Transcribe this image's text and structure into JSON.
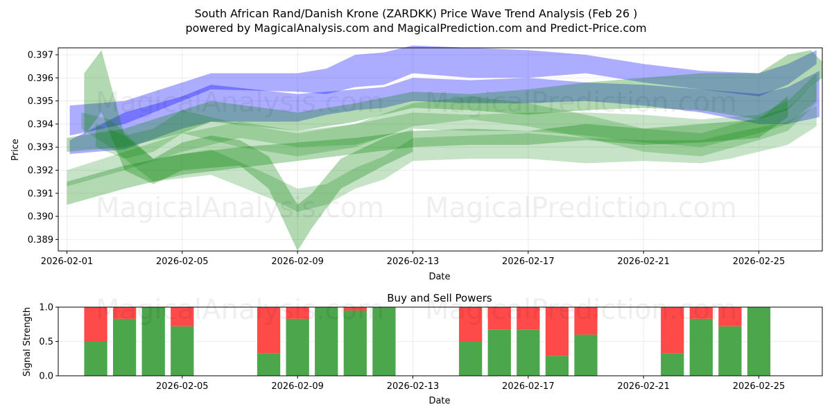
{
  "chart_data": [
    {
      "type": "area",
      "title": "South African Rand/Danish Krone (ZARDKK) Price Wave Trend Analysis (Feb 26 )",
      "subtitle": "powered by MagicalAnalysis.com and MagicalPrediction.com and Predict-Price.com",
      "xlabel": "Date",
      "ylabel": "Price",
      "xlim": [
        -0.3,
        26.2
      ],
      "ylim": [
        0.3885,
        0.3973
      ],
      "x_ticks": [
        0,
        4,
        8,
        12,
        16,
        20,
        24
      ],
      "x_tick_labels": [
        "2026-02-01",
        "2026-02-05",
        "2026-02-09",
        "2026-02-13",
        "2026-02-17",
        "2026-02-21",
        "2026-02-25"
      ],
      "y_ticks": [
        0.389,
        0.39,
        0.391,
        0.392,
        0.393,
        0.394,
        0.395,
        0.396,
        0.397
      ],
      "y_tick_labels": [
        "0.389",
        "0.390",
        "0.391",
        "0.392",
        "0.393",
        "0.394",
        "0.395",
        "0.396",
        "0.397"
      ],
      "grid": true,
      "series": [
        {
          "name": "blue wave upper band",
          "color": "#0000ff",
          "x": [
            0.1,
            2,
            4,
            5,
            8,
            9,
            10,
            11,
            12,
            14,
            16,
            17,
            18,
            20,
            22,
            24,
            25,
            26
          ],
          "lower": [
            0.3935,
            0.394,
            0.395,
            0.3955,
            0.3954,
            0.3953,
            0.3956,
            0.3957,
            0.3962,
            0.396,
            0.396,
            0.3961,
            0.3962,
            0.3958,
            0.3955,
            0.3952,
            0.3957,
            0.3966
          ],
          "upper": [
            0.3948,
            0.395,
            0.3958,
            0.3962,
            0.3962,
            0.3964,
            0.397,
            0.3971,
            0.3974,
            0.3973,
            0.3972,
            0.3971,
            0.397,
            0.3966,
            0.3963,
            0.3962,
            0.3966,
            0.3972
          ]
        },
        {
          "name": "blue wave lower band",
          "color": "#0000ff",
          "x": [
            0.1,
            2,
            4,
            5,
            8,
            9,
            10,
            11,
            12,
            14,
            16,
            18,
            20,
            22,
            24,
            25,
            26.1
          ],
          "lower": [
            0.3927,
            0.3929,
            0.3938,
            0.3941,
            0.3941,
            0.3944,
            0.3946,
            0.3947,
            0.395,
            0.3949,
            0.3949,
            0.395,
            0.3948,
            0.3945,
            0.394,
            0.394,
            0.3943
          ],
          "upper": [
            0.3933,
            0.3945,
            0.3952,
            0.3957,
            0.3953,
            0.3954,
            0.3955,
            0.3956,
            0.396,
            0.3959,
            0.396,
            0.3958,
            0.3957,
            0.3955,
            0.3953,
            0.3956,
            0.3963
          ]
        },
        {
          "name": "green wave upper trend",
          "color": "#008000",
          "x": [
            0,
            2,
            4,
            5,
            8,
            10,
            12,
            14,
            16,
            18,
            20,
            22,
            24,
            25,
            25.8,
            26.2
          ],
          "lower": [
            0.3928,
            0.393,
            0.3936,
            0.3941,
            0.3937,
            0.3941,
            0.3947,
            0.3946,
            0.3944,
            0.3946,
            0.3947,
            0.3946,
            0.3942,
            0.3946,
            0.3956,
            0.396
          ],
          "upper": [
            0.3934,
            0.3938,
            0.3946,
            0.395,
            0.3945,
            0.3949,
            0.3954,
            0.3953,
            0.3955,
            0.3958,
            0.396,
            0.3962,
            0.3962,
            0.397,
            0.3972,
            0.3967
          ]
        },
        {
          "name": "green wave middle trend",
          "color": "#008000",
          "x": [
            0,
            2,
            4,
            6,
            8,
            10,
            12,
            14,
            16,
            18,
            20,
            22,
            24,
            25,
            26
          ],
          "lower": [
            0.3913,
            0.392,
            0.3928,
            0.3934,
            0.393,
            0.3931,
            0.3938,
            0.3937,
            0.3937,
            0.3935,
            0.3932,
            0.393,
            0.3936,
            0.394,
            0.395
          ],
          "upper": [
            0.392,
            0.3928,
            0.3936,
            0.3941,
            0.3937,
            0.394,
            0.3945,
            0.3944,
            0.3945,
            0.3945,
            0.3944,
            0.3942,
            0.3944,
            0.395,
            0.3962
          ]
        },
        {
          "name": "green wave lower trend",
          "color": "#008000",
          "x": [
            0,
            2,
            4,
            6,
            8,
            10,
            12,
            14,
            16,
            18,
            20,
            22,
            24,
            25
          ],
          "lower": [
            0.3905,
            0.3912,
            0.3918,
            0.3921,
            0.3924,
            0.3927,
            0.393,
            0.3931,
            0.3931,
            0.3933,
            0.3931,
            0.3932,
            0.3934,
            0.3943
          ],
          "upper": [
            0.3915,
            0.3922,
            0.3927,
            0.393,
            0.3932,
            0.3934,
            0.3937,
            0.3938,
            0.3937,
            0.394,
            0.3938,
            0.394,
            0.3942,
            0.3952
          ]
        },
        {
          "name": "green wave dip band",
          "color": "#008000",
          "x": [
            0.5,
            1.5,
            3,
            5,
            7,
            8,
            9,
            10,
            11,
            12,
            14,
            16,
            18,
            20,
            22,
            23,
            25,
            26
          ],
          "lower": [
            0.3938,
            0.393,
            0.3915,
            0.3918,
            0.3908,
            0.3902,
            0.3905,
            0.3912,
            0.3916,
            0.3924,
            0.3925,
            0.3925,
            0.3923,
            0.3924,
            0.3923,
            0.3925,
            0.3931,
            0.3939
          ],
          "upper": [
            0.3945,
            0.3942,
            0.3925,
            0.3929,
            0.3918,
            0.3912,
            0.3914,
            0.3921,
            0.3926,
            0.3934,
            0.3935,
            0.3936,
            0.3934,
            0.3933,
            0.3933,
            0.3936,
            0.3941,
            0.3948
          ]
        },
        {
          "name": "green wave early spike",
          "color": "#008000",
          "x": [
            0.6,
            1.2,
            2,
            3,
            4,
            5,
            6,
            7,
            8,
            8.5,
            9.5,
            11,
            12
          ],
          "lower": [
            0.3935,
            0.3945,
            0.392,
            0.3914,
            0.392,
            0.3921,
            0.3922,
            0.3912,
            0.3885,
            0.3895,
            0.3912,
            0.3922,
            0.3928
          ],
          "upper": [
            0.3962,
            0.3972,
            0.3935,
            0.3925,
            0.3932,
            0.3935,
            0.3933,
            0.3926,
            0.3905,
            0.391,
            0.3925,
            0.3934,
            0.3938
          ]
        },
        {
          "name": "green wave upper mid band",
          "color": "#008000",
          "x": [
            1,
            2,
            3,
            4,
            6,
            8,
            10,
            12,
            14,
            16,
            18,
            20,
            22,
            24,
            25,
            26
          ],
          "lower": [
            0.393,
            0.3925,
            0.3928,
            0.3936,
            0.393,
            0.3926,
            0.393,
            0.3939,
            0.3942,
            0.3939,
            0.3934,
            0.3928,
            0.3926,
            0.3933,
            0.3937,
            0.3949
          ],
          "upper": [
            0.394,
            0.3935,
            0.3938,
            0.3946,
            0.394,
            0.3936,
            0.394,
            0.3949,
            0.3952,
            0.3949,
            0.3944,
            0.3938,
            0.3936,
            0.3943,
            0.3947,
            0.3958
          ]
        }
      ]
    },
    {
      "type": "bar",
      "title": "Buy and Sell Powers",
      "xlabel": "Date",
      "ylabel": "Signal Strength",
      "xlim": [
        -0.3,
        26.2
      ],
      "ylim": [
        0,
        1
      ],
      "y_ticks": [
        0,
        0.5,
        1
      ],
      "y_tick_labels": [
        "0.0",
        "0.5",
        "1.0"
      ],
      "x_ticks": [
        4,
        8,
        12,
        16,
        20,
        24
      ],
      "x_tick_labels": [
        "2026-02-05",
        "2026-02-09",
        "2026-02-13",
        "2026-02-17",
        "2026-02-21",
        "2026-02-25"
      ],
      "buy_color": "#4ca64c",
      "sell_color": "#ff4a4a",
      "series": [
        {
          "name": "Buy",
          "x": [
            1,
            2,
            3,
            4,
            7,
            8,
            9,
            10,
            11,
            14,
            15,
            16,
            17,
            18,
            21,
            22,
            23,
            24
          ],
          "values": [
            0.5,
            0.83,
            1.0,
            0.72,
            0.33,
            0.83,
            1.0,
            0.95,
            1.0,
            0.5,
            0.67,
            0.67,
            0.29,
            0.6,
            0.33,
            0.83,
            0.72,
            1.0
          ]
        },
        {
          "name": "Sell",
          "x": [
            1,
            2,
            3,
            4,
            7,
            8,
            9,
            10,
            11,
            14,
            15,
            16,
            17,
            18,
            21,
            22,
            23,
            24
          ],
          "values": [
            0.5,
            0.17,
            0.0,
            0.28,
            0.67,
            0.17,
            0.0,
            0.05,
            0.0,
            0.5,
            0.33,
            0.33,
            0.71,
            0.4,
            0.67,
            0.17,
            0.28,
            0.0
          ]
        }
      ]
    }
  ],
  "watermark": [
    "MagicalAnalysis.com",
    "MagicalPrediction.com"
  ]
}
